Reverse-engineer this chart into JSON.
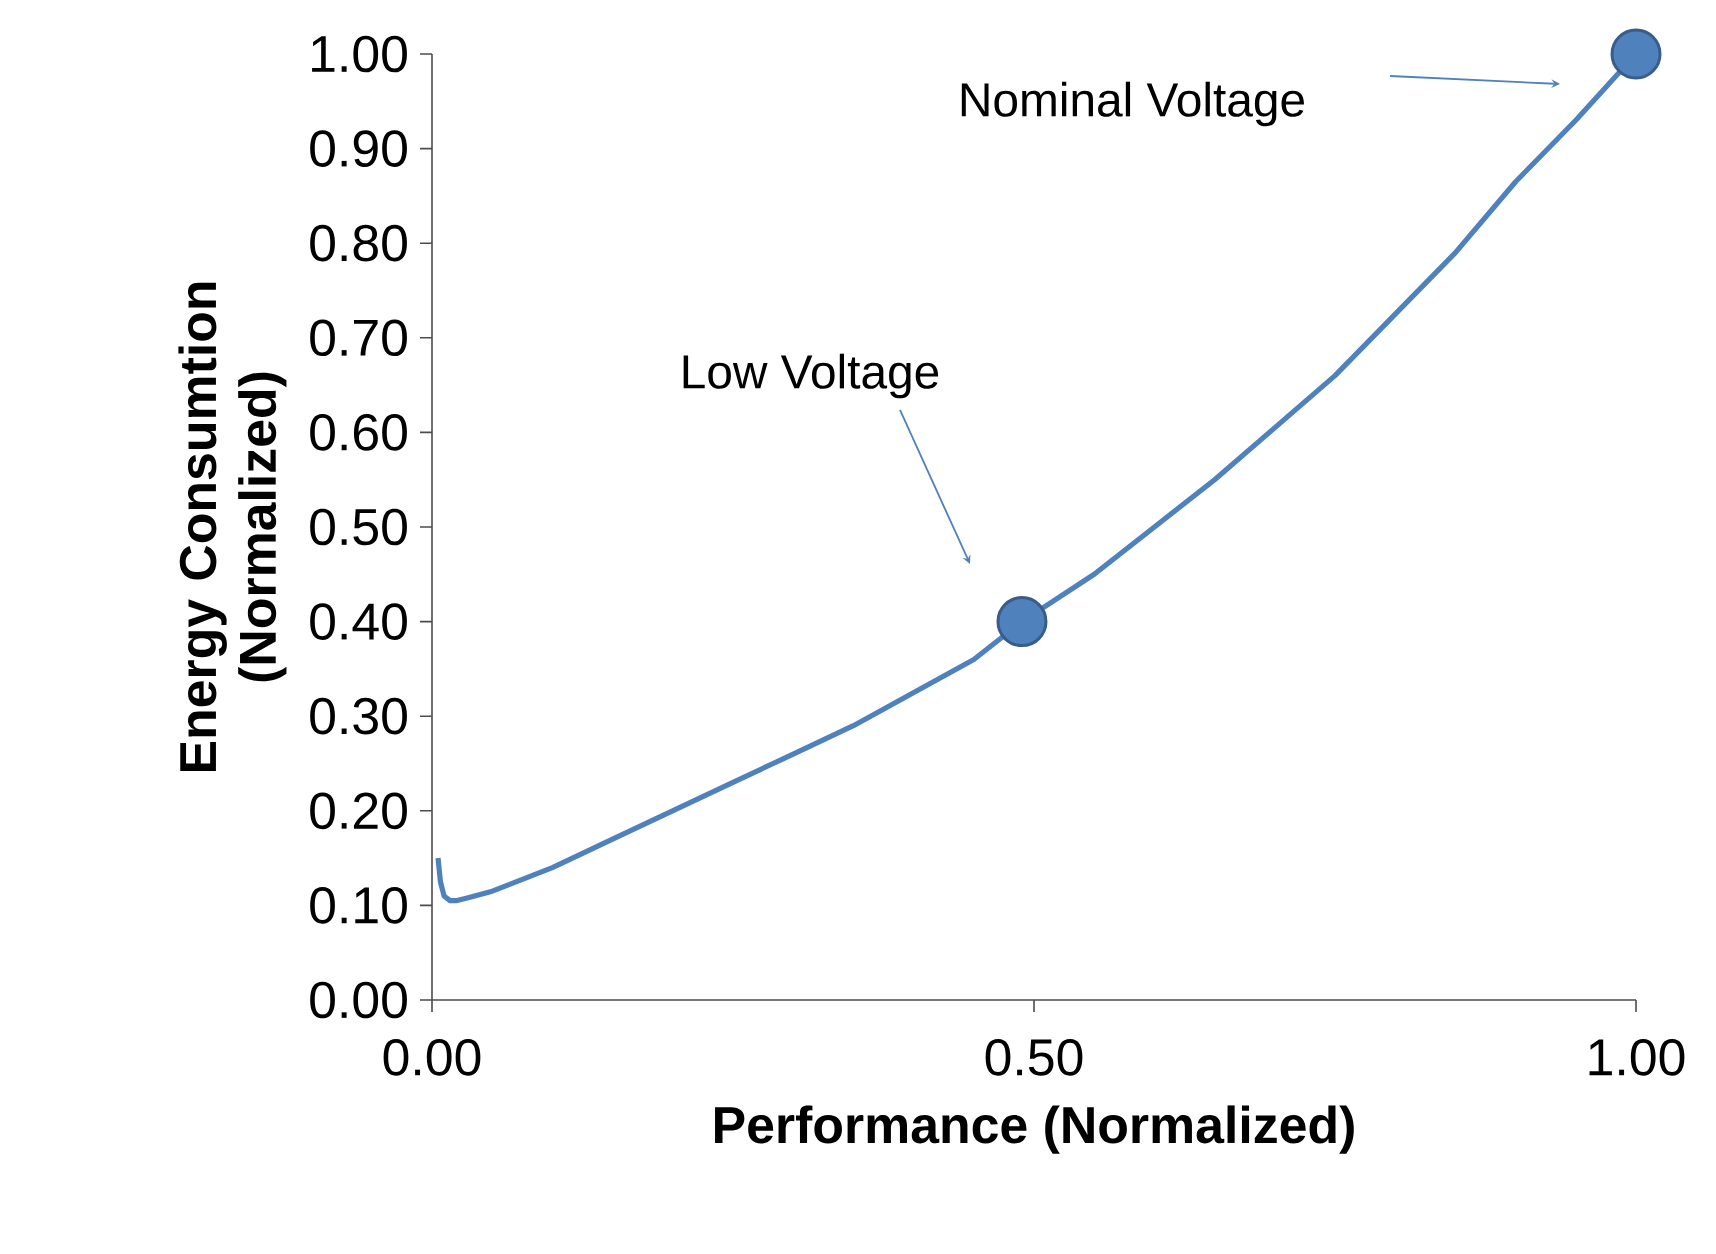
{
  "chart_data": {
    "type": "line",
    "xlabel": "Performance (Normalized)",
    "ylabel": "Energy Consumtion (Normalized)",
    "xlim": [
      0,
      1
    ],
    "ylim": [
      0,
      1
    ],
    "xticks": [
      {
        "value": 0,
        "label": "0.00"
      },
      {
        "value": 0.5,
        "label": "0.50"
      },
      {
        "value": 1,
        "label": "1.00"
      }
    ],
    "yticks": [
      {
        "value": 0,
        "label": "0.00"
      },
      {
        "value": 0.1,
        "label": "0.10"
      },
      {
        "value": 0.2,
        "label": "0.20"
      },
      {
        "value": 0.3,
        "label": "0.30"
      },
      {
        "value": 0.4,
        "label": "0.40"
      },
      {
        "value": 0.5,
        "label": "0.50"
      },
      {
        "value": 0.6,
        "label": "0.60"
      },
      {
        "value": 0.7,
        "label": "0.70"
      },
      {
        "value": 0.8,
        "label": "0.80"
      },
      {
        "value": 0.9,
        "label": "0.90"
      },
      {
        "value": 1,
        "label": "1.00"
      }
    ],
    "grid": false,
    "series": [
      {
        "color": "#4f81bd",
        "marker": "none",
        "x": [
          0.005,
          0.007,
          0.01,
          0.015,
          0.02,
          0.03,
          0.05,
          0.1,
          0.15,
          0.2,
          0.25,
          0.3,
          0.35,
          0.4,
          0.45,
          0.49,
          0.55,
          0.6,
          0.65,
          0.7,
          0.75,
          0.8,
          0.85,
          0.9,
          0.95,
          1.0
        ],
        "values": [
          0.15,
          0.125,
          0.11,
          0.105,
          0.105,
          0.108,
          0.115,
          0.14,
          0.17,
          0.2,
          0.23,
          0.26,
          0.29,
          0.325,
          0.36,
          0.4,
          0.45,
          0.5,
          0.55,
          0.605,
          0.66,
          0.725,
          0.79,
          0.865,
          0.93,
          1.0
        ]
      },
      {
        "type": "scatter",
        "color": "#4f81bd",
        "marker": "circle",
        "x": [
          0.49,
          1.0
        ],
        "values": [
          0.4,
          1.0
        ]
      }
    ],
    "annotations": [
      "Low Voltage",
      "Nominal Voltage"
    ]
  }
}
